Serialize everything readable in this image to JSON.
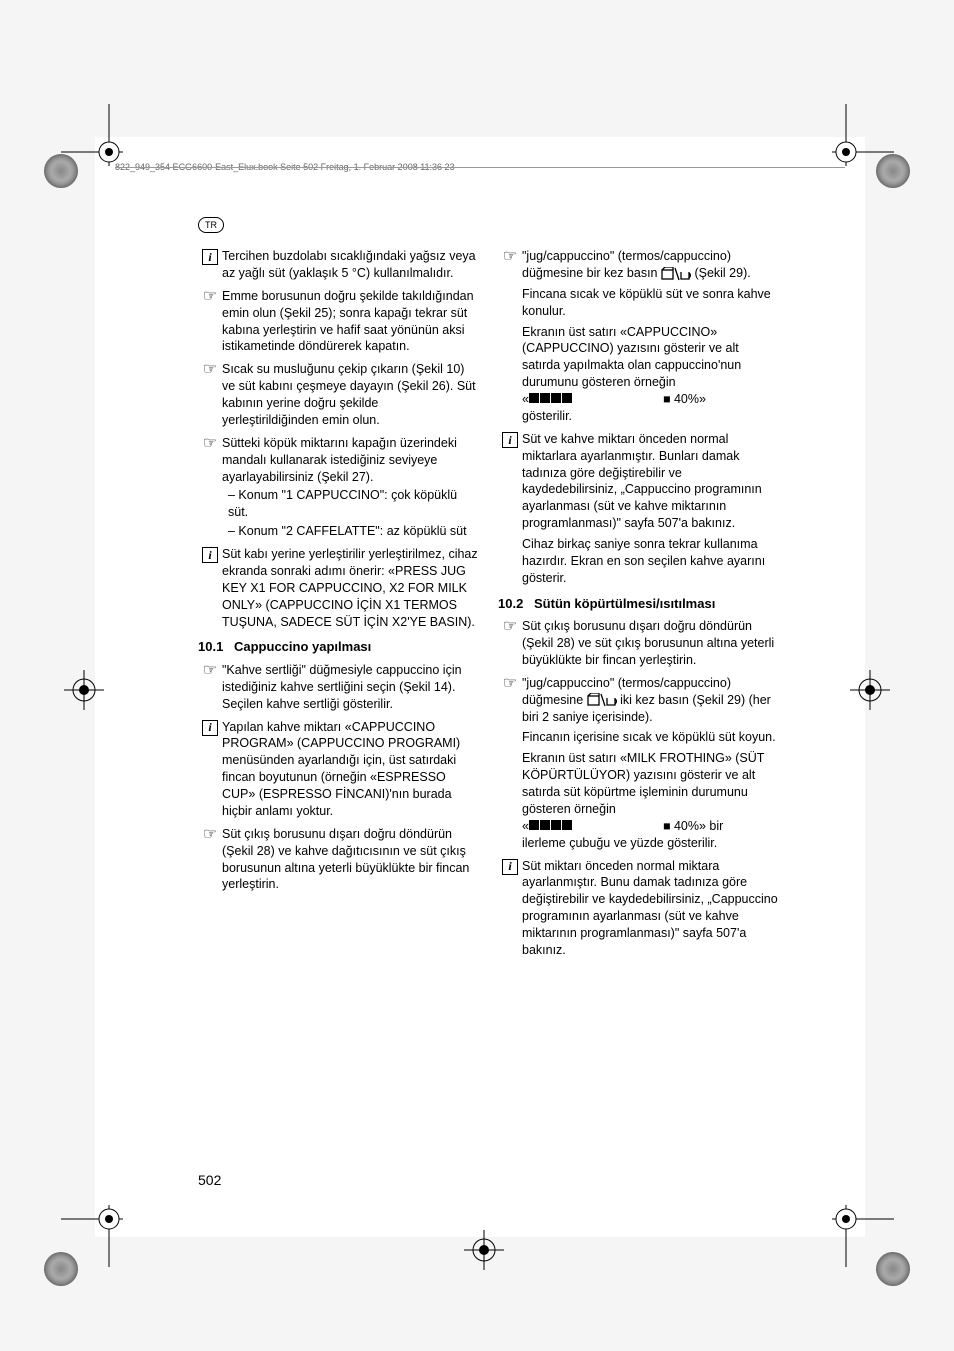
{
  "header": {
    "text": "822_949_354 ECG6600-East_Elux.book  Seite 502  Freitag, 1. Februar 2008  11:36 23",
    "lang": "TR"
  },
  "pageNumber": "502",
  "col1": [
    {
      "icon": "info",
      "text": "Tercihen buzdolabı sıcaklığındaki yağsız veya az yağlı süt (yaklaşık 5 °C) kullanılmalıdır."
    },
    {
      "icon": "hand",
      "text": "Emme borusunun doğru şekilde takıldığından emin olun (Şekil 25); sonra kapağı tekrar süt kabına yerleştirin ve hafif saat yönünün aksi istikametinde döndürerek kapatın."
    },
    {
      "icon": "hand",
      "text": "Sıcak su musluğunu çekip çıkarın (Şekil 10) ve süt kabını çeşmeye dayayın (Şekil 26). Süt kabının yerine doğru şekilde yerleştirildiğinden emin olun."
    },
    {
      "icon": "hand",
      "text": "Sütteki köpük miktarını kapağın üzerindeki mandalı kullanarak istediğiniz seviyeye ayarlayabilirsiniz (Şekil 27).",
      "subs": [
        "– Konum \"1 CAPPUCCINO\": çok köpüklü süt.",
        "– Konum \"2 CAFFELATTE\": az köpüklü süt"
      ]
    },
    {
      "icon": "info",
      "text": "Süt kabı yerine yerleştirilir yerleştirilmez, cihaz ekranda sonraki adımı önerir: «PRESS JUG KEY X1 FOR CAPPUCCINO, X2 FOR MILK ONLY» (CAPPUCCINO İÇİN X1 TERMOS TUŞUNA, SADECE SÜT İÇİN X2'YE BASIN)."
    },
    {
      "heading": true,
      "num": "10.1",
      "title": "Cappuccino yapılması"
    },
    {
      "icon": "hand",
      "text": "\"Kahve sertliği\" düğmesiyle cappuccino için istediğiniz kahve sertliğini seçin (Şekil 14). Seçilen kahve sertliği gösterilir."
    },
    {
      "icon": "info",
      "text": "Yapılan kahve miktarı «CAPPUCCINO PROGRAM» (CAPPUCCINO PROGRAMI) menüsünden ayarlandığı için, üst satırdaki fincan boyutunun (örneğin «ESPRESSO CUP» (ESPRESSO FİNCANI)'nın burada hiçbir anlamı yoktur."
    },
    {
      "icon": "hand",
      "text": "Süt çıkış borusunu dışarı doğru döndürün (Şekil 28) ve kahve dağıtıcısının ve süt çıkış borusunun altına  yeterli büyüklükte bir fincan yerleştirin."
    }
  ],
  "col2": [
    {
      "icon": "hand",
      "segments": [
        {
          "t": "\"jug/cappuccino\" (termos/cappuccino) düğmesine bir kez basın "
        },
        {
          "glyph": "jugcup"
        },
        {
          "t": " (Şekil 29)."
        }
      ],
      "extra": [
        "Fincana sıcak ve köpüklü süt ve sonra kahve konulur.",
        "Ekranın üst satırı «CAPPUCCINO» (CAPPUCCINO) yazısını gösterir ve alt satırda yapılmakta olan cappuccino'nun durumunu gösteren örneğin"
      ],
      "progress": {
        "prefix": "«",
        "blocks": 4,
        "spacer": true,
        "tail": "■ 40%»",
        "after": "gösterilir."
      }
    },
    {
      "icon": "info",
      "text": "Süt ve kahve miktarı önceden normal miktarlara ayarlanmıştır. Bunları damak tadınıza göre değiştirebilir ve kaydedebilirsiniz, „Cappuccino programının ayarlanması (süt ve kahve miktarının programlanması)\" sayfa 507'a bakınız.",
      "extra": [
        "Cihaz birkaç saniye sonra tekrar kullanıma hazırdır. Ekran en son seçilen kahve ayarını gösterir."
      ]
    },
    {
      "heading": true,
      "num": "10.2",
      "title": "Sütün köpürtülmesi/ısıtılması"
    },
    {
      "icon": "hand",
      "text": "Süt çıkış borusunu dışarı doğru döndürün (Şekil 28) ve süt çıkış borusunun altına yeterli büyüklükte bir fincan yerleştirin."
    },
    {
      "icon": "hand",
      "segments": [
        {
          "t": "\"jug/cappuccino\" (termos/cappuccino) düğmesine "
        },
        {
          "glyph": "jugcup"
        },
        {
          "t": " iki kez basın (Şekil 29) (her biri 2 saniye içerisinde)."
        }
      ],
      "extra": [
        "Fincanın içerisine sıcak ve köpüklü süt koyun.",
        "Ekranın üst satırı «MILK FROTHING» (SÜT KÖPÜRTÜLÜYOR) yazısını gösterir ve alt satırda süt köpürtme işleminin durumunu gösteren örneğin"
      ],
      "progress": {
        "prefix": "«",
        "blocks": 4,
        "spacer": true,
        "tail": "■ 40%» bir",
        "after": "ilerleme çubuğu ve yüzde gösterilir."
      }
    },
    {
      "icon": "info",
      "text": "Süt miktarı önceden normal miktara ayarlanmıştır. Bunu damak tadınıza göre değiştirebilir ve kaydedebilirsiniz, „Cappuccino programının ayarlanması (süt ve kahve miktarının programlanması)\" sayfa 507'a bakınız."
    }
  ]
}
